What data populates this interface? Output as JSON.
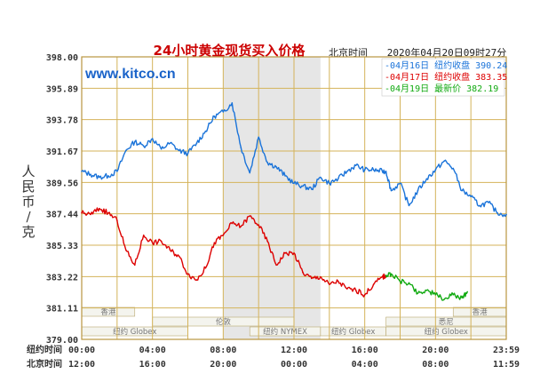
{
  "chart_data": {
    "type": "line",
    "title": "24小时黄金现货买入价格",
    "timezone_note": "北京时间",
    "timestamp": "2020年04月20日09时27分",
    "watermark": "www.kitco.cn",
    "ylabel": "人民币/克",
    "ylim": [
      379.0,
      398.0
    ],
    "y_ticks": [
      "398.00",
      "395.89",
      "393.78",
      "391.67",
      "389.56",
      "387.44",
      "385.33",
      "383.22",
      "381.11",
      "379.00"
    ],
    "x_row1_label": "纽约时间",
    "x_row2_label": "北京时间",
    "x_ticks_ny": [
      "00:00",
      "04:00",
      "08:00",
      "12:00",
      "16:00",
      "20:00",
      "23:59"
    ],
    "x_ticks_beijing": [
      "12:00",
      "16:00",
      "20:00",
      "00:00",
      "04:00",
      "08:00",
      "11:59"
    ],
    "x_range_hours": [
      0,
      24
    ],
    "highlight_band_hours": [
      8,
      13.5
    ],
    "colors": {
      "grid": "#d4b35a",
      "band": "#e6e6e6",
      "s1": "#1a73d9",
      "s2": "#dd0000",
      "s3": "#11aa11"
    },
    "sessions": [
      {
        "label": "香港",
        "row": 1,
        "start": 0,
        "end": 3
      },
      {
        "label": "伦敦",
        "row": 2,
        "start": 4,
        "end": 12
      },
      {
        "label": "纽约 Globex",
        "row": 3,
        "start": 0,
        "end": 6
      },
      {
        "label": "纽约 NYMEX",
        "row": 3,
        "start": 9.5,
        "end": 13.5
      },
      {
        "label": "纽约 Globex",
        "row": 3,
        "start": 13.5,
        "end": 17.2
      },
      {
        "label": "香港",
        "row": 1,
        "start": 21,
        "end": 24
      },
      {
        "label": "悉尼",
        "row": 2,
        "start": 17.2,
        "end": 24
      },
      {
        "label": "纽约 Globex",
        "row": 3,
        "start": 17.2,
        "end": 24
      }
    ],
    "series": [
      {
        "name": "04月16日 纽约收盘 390.24",
        "color": "#1a73d9",
        "x": [
          0,
          0.5,
          1,
          1.5,
          2,
          2.5,
          3,
          3.5,
          4,
          4.5,
          5,
          5.5,
          6,
          6.5,
          7,
          7.5,
          8,
          8.5,
          9,
          9.5,
          10,
          10.5,
          11,
          11.5,
          12,
          12.5,
          13,
          13.5,
          14,
          14.5,
          15,
          15.5,
          16,
          16.5,
          17,
          17.2,
          17.5,
          18,
          18.5,
          19,
          19.5,
          20,
          20.5,
          21,
          21.5,
          22,
          22.5,
          23,
          23.5,
          24
        ],
        "y": [
          390.3,
          390.1,
          389.9,
          390.0,
          390.3,
          391.7,
          392.3,
          392.0,
          392.5,
          391.8,
          392.2,
          391.7,
          391.5,
          392.2,
          393.0,
          394.0,
          394.3,
          394.9,
          391.9,
          390.2,
          392.6,
          390.9,
          390.6,
          390.0,
          389.5,
          389.3,
          389.1,
          389.9,
          389.5,
          389.8,
          390.3,
          390.7,
          390.4,
          390.4,
          390.3,
          390.3,
          389.0,
          389.5,
          388.0,
          389.0,
          389.8,
          390.4,
          391.0,
          390.5,
          389.0,
          388.6,
          388.0,
          388.2,
          387.5,
          387.4
        ]
      },
      {
        "name": "04月17日 纽约收盘 383.35",
        "color": "#dd0000",
        "x": [
          0,
          0.5,
          1,
          1.5,
          2,
          2.5,
          3,
          3.5,
          4,
          4.5,
          5,
          5.5,
          6,
          6.5,
          7,
          7.5,
          8,
          8.5,
          9,
          9.5,
          10,
          10.5,
          11,
          11.5,
          12,
          12.5,
          13,
          13.5,
          14,
          14.5,
          15,
          15.5,
          16,
          16.5,
          17,
          17.2
        ],
        "y": [
          387.5,
          387.4,
          387.8,
          387.5,
          387.0,
          385.0,
          384.0,
          386.0,
          385.5,
          385.6,
          385.0,
          384.6,
          383.4,
          383.0,
          383.8,
          385.5,
          386.0,
          386.8,
          386.6,
          387.3,
          386.7,
          385.6,
          384.0,
          384.8,
          384.8,
          383.5,
          383.1,
          383.2,
          382.7,
          382.9,
          382.4,
          382.3,
          382.0,
          382.7,
          383.2,
          383.3
        ]
      },
      {
        "name": "04月19日 最新价 382.19",
        "color": "#11aa11",
        "x": [
          17.2,
          17.5,
          18,
          18.5,
          19,
          19.5,
          20,
          20.5,
          21,
          21.5,
          21.8
        ],
        "y": [
          383.3,
          383.4,
          382.9,
          382.8,
          382.1,
          382.3,
          382.0,
          381.7,
          382.0,
          381.8,
          382.2
        ]
      }
    ]
  }
}
